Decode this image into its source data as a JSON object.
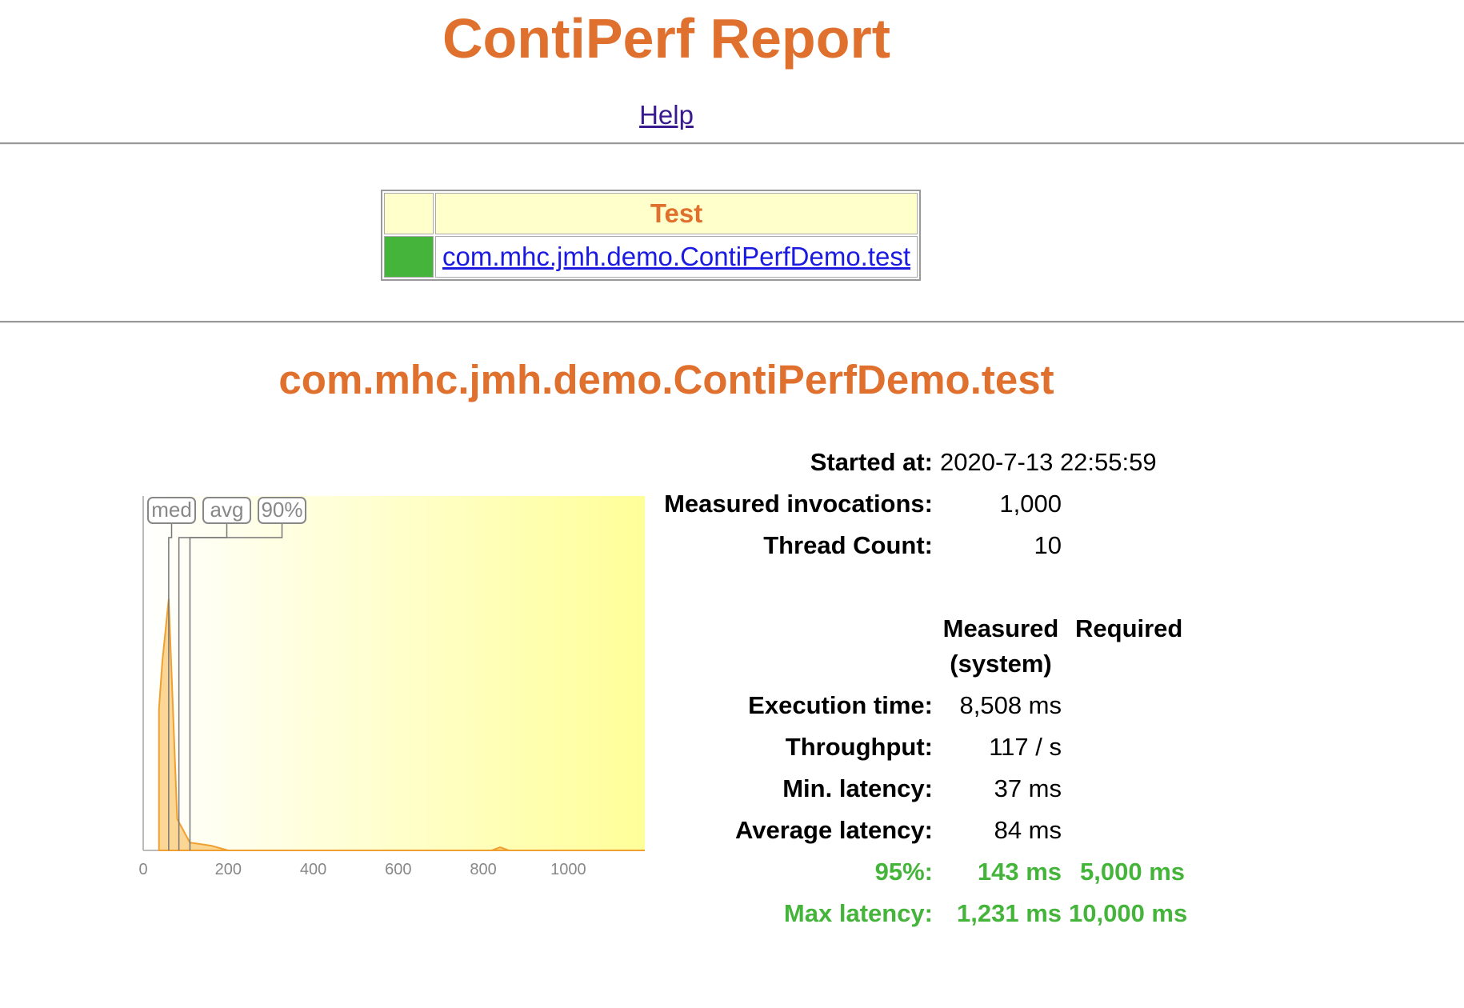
{
  "page": {
    "title": "ContiPerf Report",
    "help_link": "Help"
  },
  "tests_table": {
    "header": "Test",
    "rows": [
      {
        "name": "com.mhc.jmh.demo.ContiPerfDemo.test",
        "status_color": "#44b53a"
      }
    ]
  },
  "test_detail": {
    "heading": "com.mhc.jmh.demo.ContiPerfDemo.test",
    "started_label": "Started at:",
    "started_value": "2020-7-13 22:55:59",
    "invocations_label": "Measured invocations:",
    "invocations_value": "1,000",
    "threads_label": "Thread Count:",
    "threads_value": "10",
    "measured_header_line1": "Measured",
    "measured_header_line2": "(system)",
    "required_header": "Required",
    "execution_label": "Execution time:",
    "execution_value": "8,508 ms",
    "throughput_label": "Throughput:",
    "throughput_value": "117 / s",
    "min_label": "Min. latency:",
    "min_value": "37 ms",
    "avg_label": "Average latency:",
    "avg_value": "84 ms",
    "p95_label": "95%:",
    "p95_value": "143 ms",
    "p95_required": "5,000 ms",
    "max_label": "Max latency:",
    "max_value": "1,231 ms",
    "max_required": "10,000 ms",
    "pass_color": "#44b53a"
  },
  "chart_data": {
    "type": "area",
    "x_ticks": [
      "0",
      "200",
      "400",
      "600",
      "800",
      "1000"
    ],
    "xlim": [
      0,
      1180
    ],
    "ylim": [
      0,
      100
    ],
    "series": [
      {
        "x": [
          37,
          37,
          45,
          60,
          80,
          110,
          160,
          200,
          800,
          820,
          840,
          860,
          1180
        ],
        "y": [
          0,
          45,
          60,
          80,
          10,
          2.5,
          1.5,
          0,
          0,
          0,
          1,
          0,
          0
        ]
      }
    ],
    "markers": [
      {
        "label": "med",
        "x": 60
      },
      {
        "label": "avg",
        "x": 84
      },
      {
        "label": "90%",
        "x": 110
      }
    ],
    "fill_color": "#f9c56a",
    "line_color": "#f0a030"
  }
}
